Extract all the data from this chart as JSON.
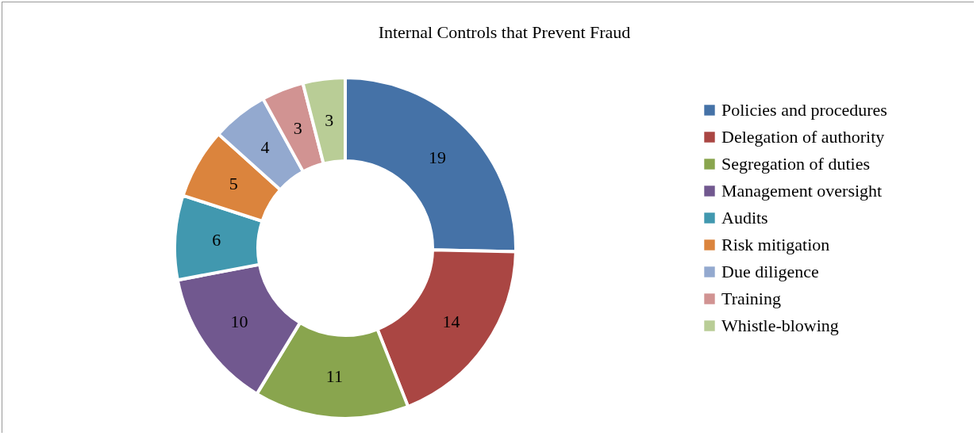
{
  "chart_data": {
    "type": "donut",
    "title": "Internal Controls that Prevent Fraud",
    "categories": [
      "Policies and procedures",
      "Delegation of authority",
      "Segregation of duties",
      "Management oversight",
      "Audits",
      "Risk mitigation",
      "Due diligence",
      "Training",
      "Whistle-blowing"
    ],
    "values": [
      19,
      14,
      11,
      10,
      6,
      5,
      4,
      3,
      3
    ],
    "colors": [
      "#4572a7",
      "#aa4643",
      "#89a54e",
      "#71588f",
      "#4198af",
      "#db843d",
      "#93a9cf",
      "#d19392",
      "#b9cd96"
    ],
    "data_labels": true,
    "legend": "right"
  }
}
